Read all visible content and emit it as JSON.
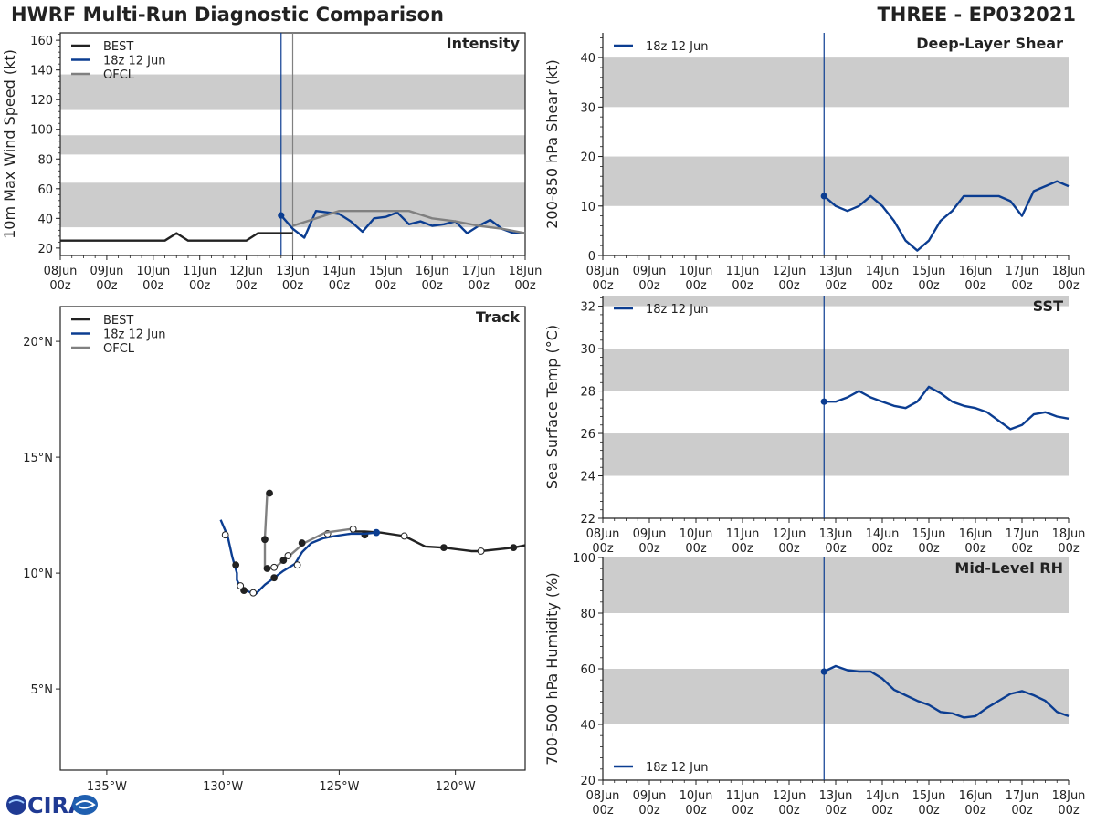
{
  "header": {
    "title_left": "HWRF Multi-Run Diagnostic Comparison",
    "title_right": "THREE - EP032021"
  },
  "logo": {
    "text": "CIRA",
    "icon": "cira-logo-icon",
    "brand_color": "#1f3a93"
  },
  "colors": {
    "best": "#222222",
    "run": "#0b3d91",
    "ofcl": "#808080",
    "band": "#cccccc",
    "axis": "#222222"
  },
  "time_axis": {
    "ticks": [
      "08Jun",
      "09Jun",
      "10Jun",
      "11Jun",
      "12Jun",
      "13Jun",
      "14Jun",
      "15Jun",
      "16Jun",
      "17Jun",
      "18Jun"
    ],
    "sublabel": "00z",
    "init_day": 4.75
  },
  "chart_data": [
    {
      "id": "intensity",
      "type": "line",
      "title": "Intensity",
      "ylabel": "10m Max Wind Speed (kt)",
      "xlim": [
        0,
        10
      ],
      "ylim": [
        15,
        165
      ],
      "yticks": [
        20,
        40,
        60,
        80,
        100,
        120,
        140,
        160
      ],
      "bands": [
        [
          34,
          64
        ],
        [
          83,
          96
        ],
        [
          113,
          137
        ]
      ],
      "vlines": [
        {
          "x": 4.75,
          "color": "run"
        },
        {
          "x": 5.0,
          "color": "ofcl"
        }
      ],
      "legend": [
        "BEST",
        "18z 12 Jun",
        "OFCL"
      ],
      "series": [
        {
          "name": "BEST",
          "color": "best",
          "x": [
            0,
            0.25,
            0.5,
            0.75,
            1,
            1.25,
            1.5,
            1.75,
            2,
            2.25,
            2.5,
            2.75,
            3,
            3.25,
            3.5,
            3.75,
            4,
            4.25,
            4.5,
            4.75,
            5.0
          ],
          "y": [
            25,
            25,
            25,
            25,
            25,
            25,
            25,
            25,
            25,
            25,
            30,
            25,
            25,
            25,
            25,
            25,
            25,
            30,
            30,
            30,
            30
          ]
        },
        {
          "name": "18z 12 Jun",
          "color": "run",
          "marker_start": true,
          "x": [
            4.75,
            5.0,
            5.25,
            5.5,
            5.75,
            6.0,
            6.25,
            6.5,
            6.75,
            7.0,
            7.25,
            7.5,
            7.75,
            8.0,
            8.25,
            8.5,
            8.75,
            9.0,
            9.25,
            9.5,
            9.75,
            10.0
          ],
          "y": [
            42,
            33,
            27,
            45,
            44,
            43,
            38,
            31,
            40,
            41,
            44,
            36,
            38,
            35,
            36,
            38,
            30,
            35,
            39,
            33,
            30,
            30
          ]
        },
        {
          "name": "OFCL",
          "color": "ofcl",
          "x": [
            5.0,
            5.5,
            6.0,
            6.5,
            7.0,
            7.5,
            8.0,
            8.5,
            9.0,
            9.5,
            10.0
          ],
          "y": [
            35,
            40,
            45,
            45,
            45,
            45,
            40,
            38,
            35,
            33,
            30
          ]
        }
      ]
    },
    {
      "id": "shear",
      "type": "line",
      "title": "Deep-Layer Shear",
      "ylabel": "200-850 hPa Shear (kt)",
      "xlim": [
        0,
        10
      ],
      "ylim": [
        0,
        45
      ],
      "yticks": [
        0,
        10,
        20,
        30,
        40
      ],
      "bands": [
        [
          10,
          20
        ],
        [
          30,
          40
        ]
      ],
      "vlines": [
        {
          "x": 4.75,
          "color": "run"
        }
      ],
      "legend": [
        "18z 12 Jun"
      ],
      "series": [
        {
          "name": "18z 12 Jun",
          "color": "run",
          "marker_start": true,
          "x": [
            4.75,
            5.0,
            5.25,
            5.5,
            5.75,
            6.0,
            6.25,
            6.5,
            6.75,
            7.0,
            7.25,
            7.5,
            7.75,
            8.0,
            8.25,
            8.5,
            8.75,
            9.0,
            9.25,
            9.5,
            9.75,
            10.0
          ],
          "y": [
            12,
            10,
            9,
            10,
            12,
            10,
            7,
            3,
            1,
            3,
            7,
            9,
            12,
            12,
            12,
            12,
            11,
            8,
            13,
            14,
            15,
            14
          ]
        }
      ]
    },
    {
      "id": "sst",
      "type": "line",
      "title": "SST",
      "ylabel": "Sea Surface Temp (°C)",
      "xlim": [
        0,
        10
      ],
      "ylim": [
        22,
        32.5
      ],
      "yticks": [
        22,
        24,
        26,
        28,
        30,
        32
      ],
      "bands": [
        [
          24,
          26
        ],
        [
          28,
          30
        ],
        [
          32,
          32.5
        ]
      ],
      "vlines": [
        {
          "x": 4.75,
          "color": "run"
        }
      ],
      "legend": [
        "18z 12 Jun"
      ],
      "series": [
        {
          "name": "18z 12 Jun",
          "color": "run",
          "marker_start": true,
          "x": [
            4.75,
            5.0,
            5.25,
            5.5,
            5.75,
            6.0,
            6.25,
            6.5,
            6.75,
            7.0,
            7.25,
            7.5,
            7.75,
            8.0,
            8.25,
            8.5,
            8.75,
            9.0,
            9.25,
            9.5,
            9.75,
            10.0
          ],
          "y": [
            27.5,
            27.5,
            27.7,
            28.0,
            27.7,
            27.5,
            27.3,
            27.2,
            27.5,
            28.2,
            27.9,
            27.5,
            27.3,
            27.2,
            27.0,
            26.6,
            26.2,
            26.4,
            26.9,
            27.0,
            26.8,
            26.7
          ]
        }
      ]
    },
    {
      "id": "rh",
      "type": "line",
      "title": "Mid-Level RH",
      "ylabel": "700-500 hPa Humidity (%)",
      "xlim": [
        0,
        10
      ],
      "ylim": [
        20,
        100
      ],
      "yticks": [
        20,
        40,
        60,
        80,
        100
      ],
      "bands": [
        [
          40,
          60
        ],
        [
          80,
          100
        ]
      ],
      "vlines": [
        {
          "x": 4.75,
          "color": "run"
        }
      ],
      "legend": [
        "18z 12 Jun"
      ],
      "legend_position": "bottom-left",
      "series": [
        {
          "name": "18z 12 Jun",
          "color": "run",
          "marker_start": true,
          "x": [
            4.75,
            5.0,
            5.25,
            5.5,
            5.75,
            6.0,
            6.25,
            6.5,
            6.75,
            7.0,
            7.25,
            7.5,
            7.75,
            8.0,
            8.25,
            8.5,
            8.75,
            9.0,
            9.25,
            9.5,
            9.75,
            10.0
          ],
          "y": [
            59,
            61,
            59.5,
            59,
            59,
            56.5,
            52.5,
            50.5,
            48.5,
            47,
            44.5,
            44,
            42.5,
            43,
            46,
            48.5,
            51,
            52,
            50.5,
            48.5,
            44.5,
            43
          ]
        }
      ]
    },
    {
      "id": "track",
      "type": "line",
      "title": "Track",
      "xlim": [
        -137,
        -117
      ],
      "ylim": [
        1.5,
        21.5
      ],
      "xticks": [
        -135,
        -130,
        -125,
        -120
      ],
      "xtick_labels": [
        "135°W",
        "130°W",
        "125°W",
        "120°W"
      ],
      "yticks": [
        5,
        10,
        15,
        20
      ],
      "ytick_labels": [
        "5°N",
        "10°N",
        "15°N",
        "20°N"
      ],
      "legend": [
        "BEST",
        "18z 12 Jun",
        "OFCL"
      ],
      "series": [
        {
          "name": "BEST",
          "color": "best",
          "lon": [
            -117,
            -117.5,
            -118.9,
            -119.3,
            -120.5,
            -121.3,
            -122.2,
            -123.2,
            -123.9,
            -124.5
          ],
          "lat": [
            11.2,
            11.1,
            10.95,
            10.95,
            11.1,
            11.15,
            11.6,
            11.75,
            11.8,
            11.8
          ],
          "markers": [
            {
              "lon": -117.5,
              "lat": 11.1,
              "fill": true
            },
            {
              "lon": -118.9,
              "lat": 10.95,
              "fill": false
            },
            {
              "lon": -120.5,
              "lat": 11.1,
              "fill": true
            },
            {
              "lon": -122.2,
              "lat": 11.6,
              "fill": false
            },
            {
              "lon": -123.9,
              "lat": 11.65,
              "fill": true
            }
          ]
        },
        {
          "name": "18z 12 Jun",
          "color": "run",
          "lon": [
            -123.4,
            -123.9,
            -124.5,
            -125.2,
            -125.7,
            -126.2,
            -126.6,
            -126.9,
            -127.4,
            -127.8,
            -128.2,
            -128.6,
            -128.9,
            -129.2,
            -129.4,
            -129.4,
            -129.6,
            -129.8,
            -130.1
          ],
          "lat": [
            11.75,
            11.7,
            11.7,
            11.6,
            11.5,
            11.3,
            10.9,
            10.4,
            10.1,
            9.8,
            9.5,
            9.1,
            9.2,
            9.3,
            9.7,
            10.0,
            10.7,
            11.6,
            12.3
          ],
          "markers": [
            {
              "lon": -123.4,
              "lat": 11.75,
              "fill": true,
              "color": "run"
            },
            {
              "lon": -125.5,
              "lat": 11.7,
              "fill": false
            },
            {
              "lon": -126.8,
              "lat": 10.35,
              "fill": false
            },
            {
              "lon": -127.8,
              "lat": 9.8,
              "fill": true
            },
            {
              "lon": -128.7,
              "lat": 9.15,
              "fill": false
            },
            {
              "lon": -129.1,
              "lat": 9.25,
              "fill": true
            },
            {
              "lon": -129.25,
              "lat": 9.45,
              "fill": false
            },
            {
              "lon": -129.45,
              "lat": 10.35,
              "fill": true
            },
            {
              "lon": -129.9,
              "lat": 11.65,
              "fill": false
            }
          ]
        },
        {
          "name": "OFCL",
          "color": "ofcl",
          "lon": [
            -124.5,
            -125.6,
            -126.5,
            -127.2,
            -127.7,
            -128.0,
            -128.2,
            -128.2,
            -128.1
          ],
          "lat": [
            11.9,
            11.75,
            11.3,
            10.7,
            10.3,
            10.2,
            10.2,
            11.5,
            13.4
          ],
          "markers": [
            {
              "lon": -124.4,
              "lat": 11.9,
              "fill": false
            },
            {
              "lon": -126.6,
              "lat": 11.3,
              "fill": true
            },
            {
              "lon": -127.2,
              "lat": 10.75,
              "fill": false
            },
            {
              "lon": -127.4,
              "lat": 10.55,
              "fill": true
            },
            {
              "lon": -127.8,
              "lat": 10.25,
              "fill": false
            },
            {
              "lon": -128.1,
              "lat": 10.2,
              "fill": true
            },
            {
              "lon": -128.2,
              "lat": 11.45,
              "fill": true
            },
            {
              "lon": -128.0,
              "lat": 13.45,
              "fill": true
            }
          ]
        }
      ]
    }
  ]
}
